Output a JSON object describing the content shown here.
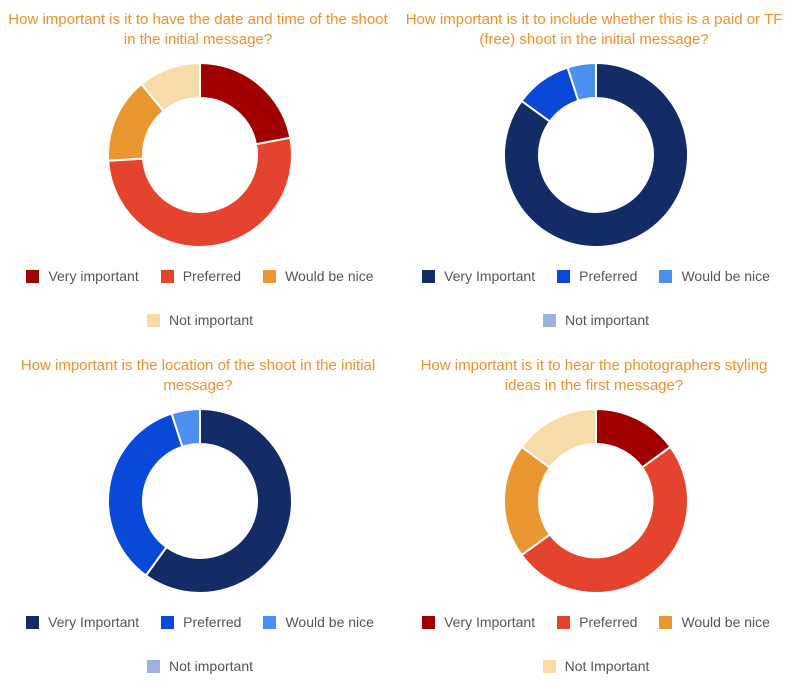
{
  "chart_data": [
    {
      "type": "pie",
      "title": "How important is it to have the date and time of the shoot in the initial message?",
      "categories": [
        "Very important",
        "Preferred",
        "Would be nice",
        "Not important"
      ],
      "values": [
        22,
        52,
        15,
        11
      ],
      "colors": [
        "#a00000",
        "#e4442d",
        "#e99831",
        "#f7dca9"
      ],
      "legend": "bottom"
    },
    {
      "type": "pie",
      "title": "How important is it to include whether this is a paid or TF (free) shoot in the initial message?",
      "categories": [
        "Very Important",
        "Preferred",
        "Would be nice",
        "Not important"
      ],
      "values": [
        85,
        10,
        5,
        0
      ],
      "colors": [
        "#132c66",
        "#0a49d8",
        "#4d8ff0",
        "#9eb1dc"
      ],
      "legend": "bottom"
    },
    {
      "type": "pie",
      "title": "How important is the location of the shoot in the initial message?",
      "categories": [
        "Very Important",
        "Preferred",
        "Would be nice",
        "Not important"
      ],
      "values": [
        60,
        35,
        5,
        0
      ],
      "colors": [
        "#132c66",
        "#0a49d8",
        "#4d8ff0",
        "#9eb1dc"
      ],
      "legend": "bottom"
    },
    {
      "type": "pie",
      "title": "How important is it to hear the photographers styling ideas in the first message?",
      "categories": [
        "Very Important",
        "Preferred",
        "Would be nice",
        "Not Important"
      ],
      "values": [
        15,
        50,
        20,
        15
      ],
      "colors": [
        "#a00000",
        "#e4442d",
        "#e99831",
        "#f7dca9"
      ],
      "legend": "bottom"
    }
  ]
}
